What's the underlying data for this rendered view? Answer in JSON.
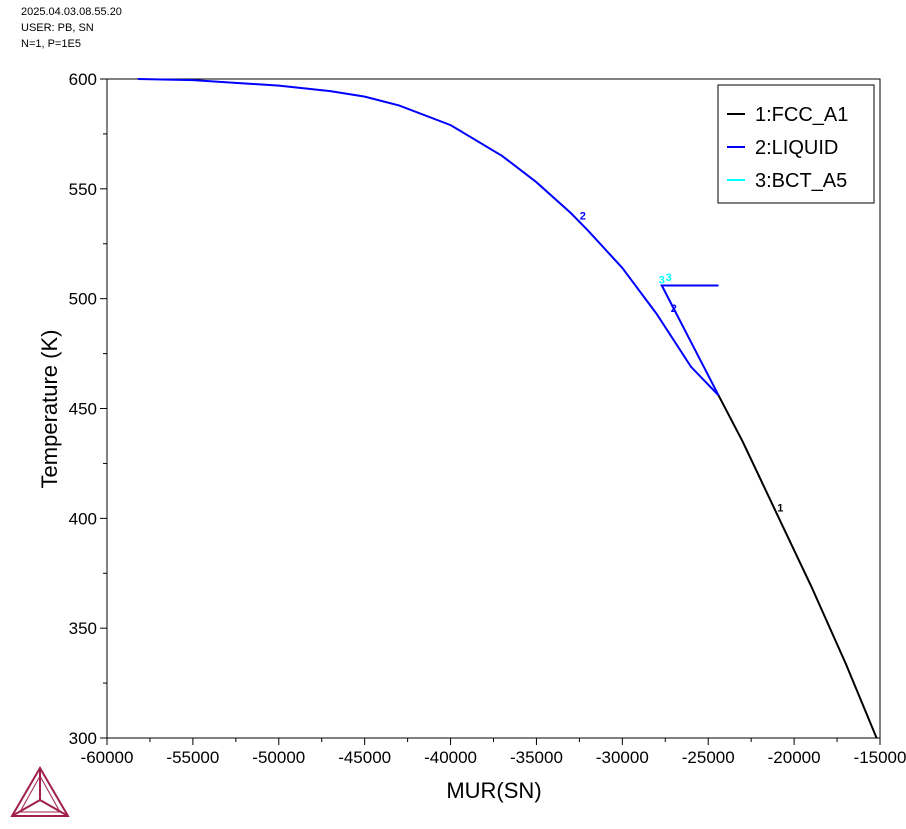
{
  "header": {
    "line1": "2025.04.03.08.55.20",
    "line2": "USER: PB, SN",
    "line3": "N=1, P=1E5"
  },
  "chart_data": {
    "type": "line",
    "xlabel": "MUR(SN)",
    "ylabel": "Temperature (K)",
    "xlim": [
      -60000,
      -15000
    ],
    "ylim": [
      300,
      600
    ],
    "xticks": [
      -60000,
      -55000,
      -50000,
      -45000,
      -40000,
      -35000,
      -30000,
      -25000,
      -20000,
      -15000
    ],
    "yticks": [
      300,
      350,
      400,
      450,
      500,
      550,
      600
    ],
    "grid": false,
    "legend_position": "top-right",
    "series": [
      {
        "name": "1:FCC_A1",
        "color": "#000000",
        "points": [
          [
            -24400,
            456
          ],
          [
            -23000,
            435
          ],
          [
            -21000,
            402
          ],
          [
            -19000,
            369
          ],
          [
            -17000,
            334
          ],
          [
            -15200,
            300
          ]
        ]
      },
      {
        "name": "2:LIQUID",
        "color": "#0000ff",
        "points": [
          [
            -58200,
            600
          ],
          [
            -55000,
            599.5
          ],
          [
            -50000,
            597
          ],
          [
            -47000,
            594.5
          ],
          [
            -45000,
            592
          ],
          [
            -43000,
            588
          ],
          [
            -40000,
            579
          ],
          [
            -37000,
            565
          ],
          [
            -35000,
            553
          ],
          [
            -33000,
            539
          ],
          [
            -32000,
            531
          ],
          [
            -30000,
            514
          ],
          [
            -28000,
            493
          ],
          [
            -26000,
            469
          ],
          [
            -24400,
            456
          ]
        ]
      },
      {
        "name": "2:LIQUID",
        "color": "#0000ff",
        "points": [
          [
            -24400,
            456
          ],
          [
            -27700,
            506
          ],
          [
            -24400,
            506
          ]
        ]
      },
      {
        "name": "3:BCT_A5",
        "color": "#00ffff",
        "points": []
      }
    ],
    "curve_labels": [
      {
        "text": "2",
        "x": -32300,
        "y": 536,
        "color": "#0000ff"
      },
      {
        "text": "2",
        "x": -27000,
        "y": 494,
        "color": "#0000ff"
      },
      {
        "text": "3",
        "x": -27700,
        "y": 507,
        "color": "#00ffff"
      },
      {
        "text": "3",
        "x": -27300,
        "y": 508,
        "color": "#00ffff"
      },
      {
        "text": "1",
        "x": -20800,
        "y": 403,
        "color": "#000000"
      }
    ]
  }
}
